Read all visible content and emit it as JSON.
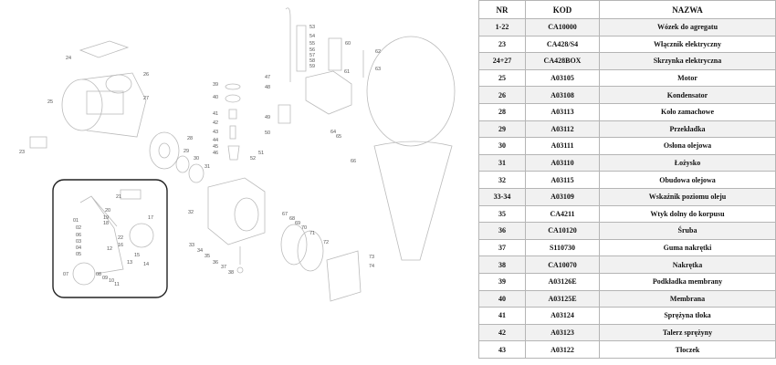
{
  "table": {
    "headers": [
      "NR",
      "KOD",
      "NAZWA"
    ],
    "rows": [
      [
        "1-22",
        "CA10000",
        "Wózek do agregatu"
      ],
      [
        "23",
        "CA428/S4",
        "Włącznik elektryczny"
      ],
      [
        "24+27",
        "CA428BOX",
        "Skrzynka elektryczna"
      ],
      [
        "25",
        "A03105",
        "Motor"
      ],
      [
        "26",
        "A03108",
        "Kondensator"
      ],
      [
        "28",
        "A03113",
        "Koło zamachowe"
      ],
      [
        "29",
        "A03112",
        "Przekładka"
      ],
      [
        "30",
        "A03111",
        "Osłona olejowa"
      ],
      [
        "31",
        "A03110",
        "Łożysko"
      ],
      [
        "32",
        "A03115",
        "Obudowa olejowa"
      ],
      [
        "33-34",
        "A03109",
        "Wskaźnik poziomu oleju"
      ],
      [
        "35",
        "CA4211",
        "Wtyk dolny do korpusu"
      ],
      [
        "36",
        "CA10120",
        "Śruba"
      ],
      [
        "37",
        "S110730",
        "Guma nakrętki"
      ],
      [
        "38",
        "CA10070",
        "Nakrętka"
      ],
      [
        "39",
        "A03126E",
        "Podkładka membrany"
      ],
      [
        "40",
        "A03125E",
        "Membrana"
      ],
      [
        "41",
        "A03124",
        "Sprężyna tłoka"
      ],
      [
        "42",
        "A03123",
        "Talerz sprężyny"
      ],
      [
        "43",
        "A03122",
        "Tłoczek"
      ]
    ]
  },
  "diagram": {
    "callouts": [
      "24",
      "26",
      "25",
      "27",
      "23",
      "28",
      "29",
      "30",
      "31",
      "53",
      "54",
      "55",
      "56",
      "57",
      "58",
      "59",
      "60",
      "61",
      "62",
      "63",
      "47",
      "48",
      "49",
      "50",
      "64",
      "65",
      "39",
      "40",
      "41",
      "42",
      "43",
      "44",
      "45",
      "46",
      "51",
      "52",
      "66",
      "32",
      "33",
      "34",
      "35",
      "36",
      "37",
      "38",
      "67",
      "68",
      "69",
      "70",
      "71",
      "72",
      "73",
      "74"
    ],
    "cart_callouts": [
      "21",
      "20",
      "19",
      "18",
      "17",
      "01",
      "02",
      "06",
      "03",
      "04",
      "05",
      "12",
      "22",
      "16",
      "15",
      "13",
      "14",
      "07",
      "08",
      "09",
      "10",
      "11"
    ]
  }
}
